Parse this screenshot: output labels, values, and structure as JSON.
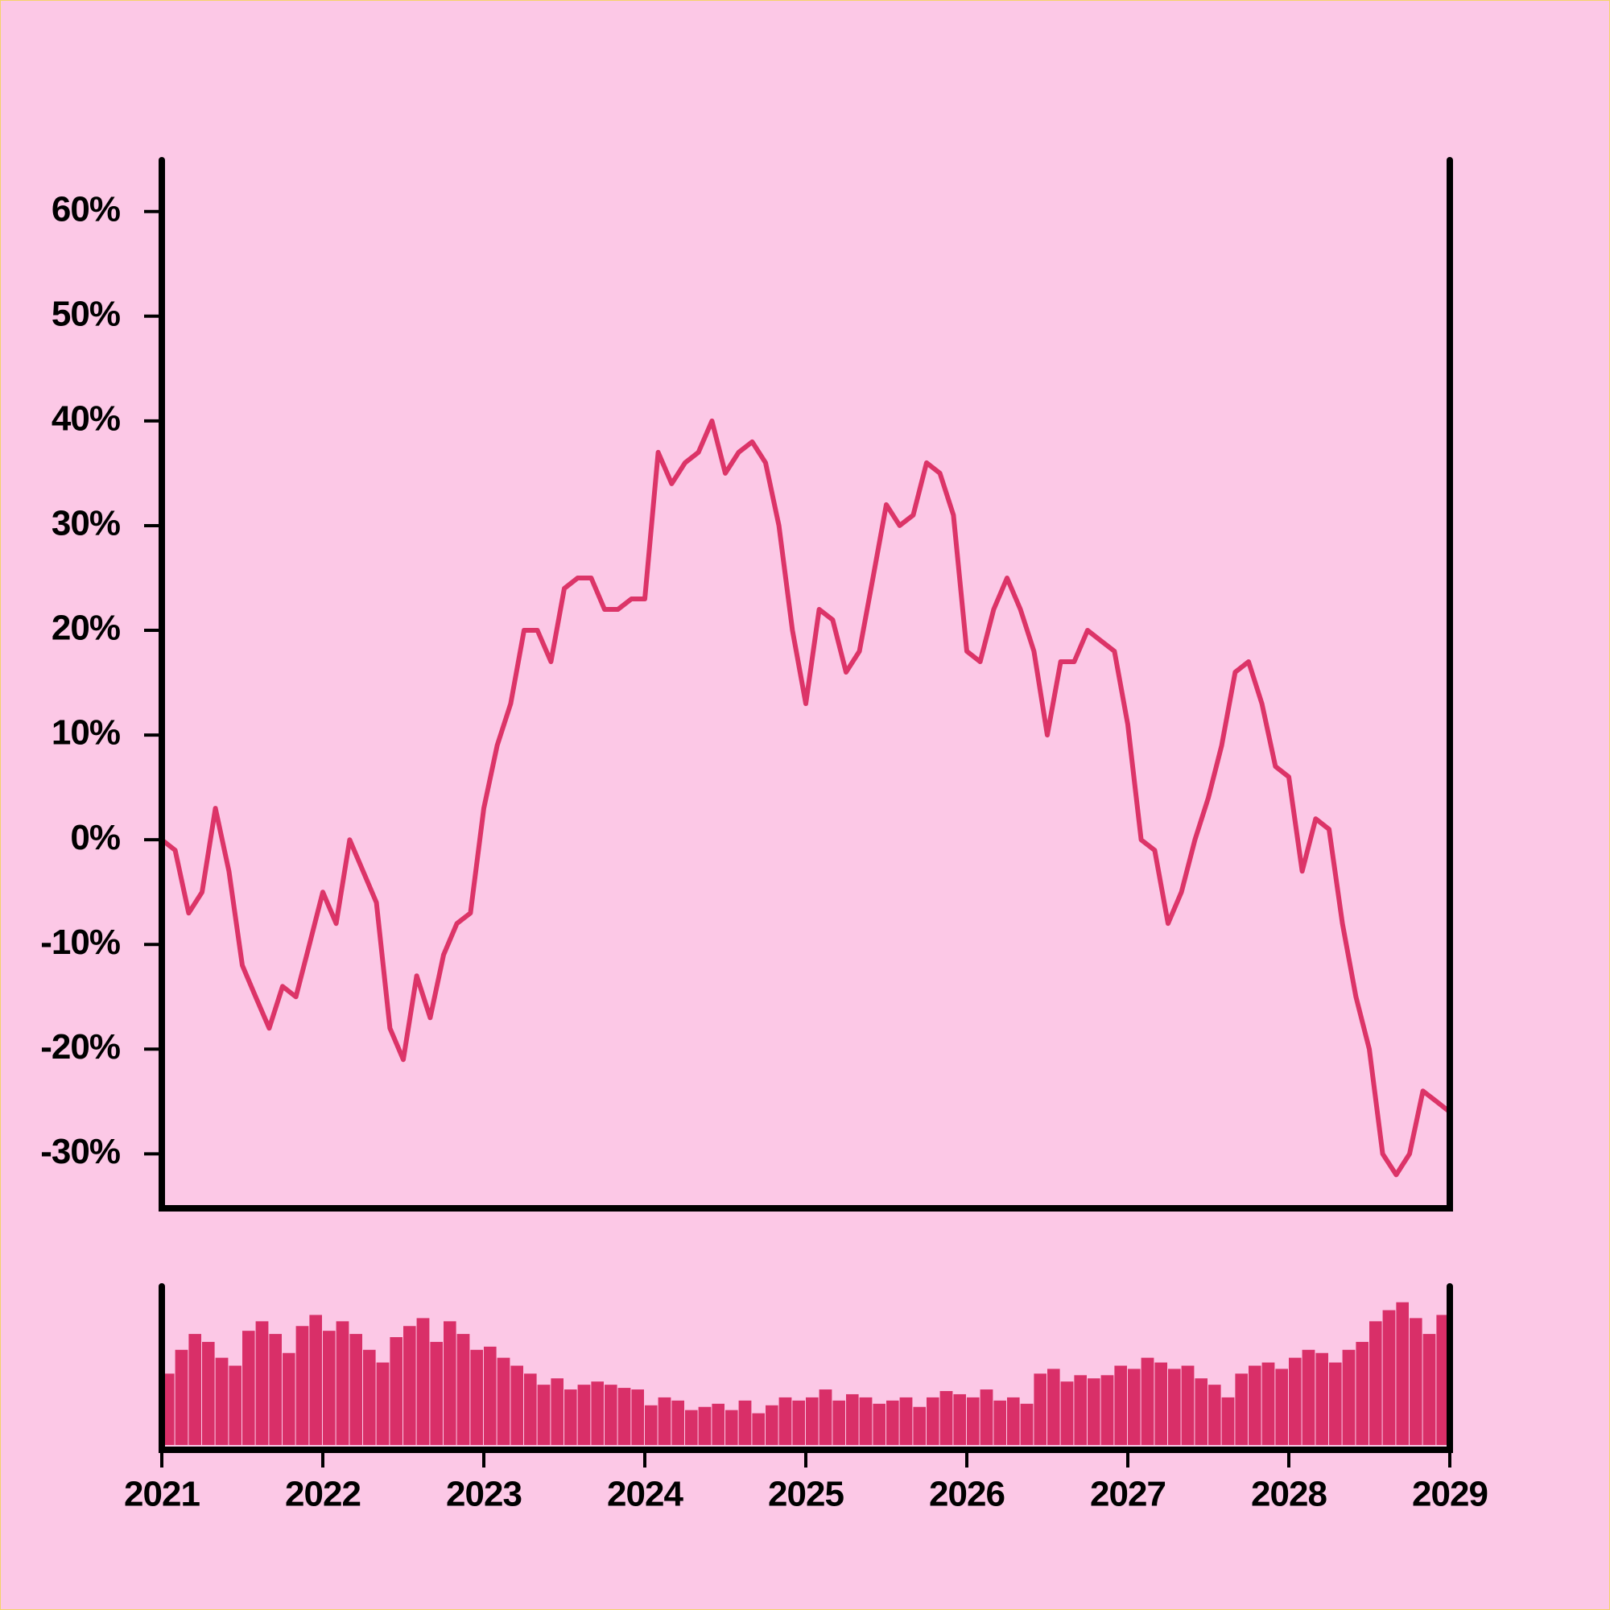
{
  "chart_data": [
    {
      "type": "line",
      "color": "#dc3468",
      "x": [
        2021,
        2021.083,
        2021.167,
        2021.25,
        2021.333,
        2021.417,
        2021.5,
        2021.583,
        2021.667,
        2021.75,
        2021.833,
        2021.917,
        2022,
        2022.083,
        2022.167,
        2022.25,
        2022.333,
        2022.417,
        2022.5,
        2022.583,
        2022.667,
        2022.75,
        2022.833,
        2022.917,
        2023,
        2023.083,
        2023.167,
        2023.25,
        2023.333,
        2023.417,
        2023.5,
        2023.583,
        2023.667,
        2023.75,
        2023.833,
        2023.917,
        2024,
        2024.083,
        2024.167,
        2024.25,
        2024.333,
        2024.417,
        2024.5,
        2024.583,
        2024.667,
        2024.75,
        2024.833,
        2024.917,
        2025,
        2025.083,
        2025.167,
        2025.25,
        2025.333,
        2025.417,
        2025.5,
        2025.583,
        2025.667,
        2025.75,
        2025.833,
        2025.917,
        2026,
        2026.083,
        2026.167,
        2026.25,
        2026.333,
        2026.417,
        2026.5,
        2026.583,
        2026.667,
        2026.75,
        2026.833,
        2026.917,
        2027,
        2027.083,
        2027.167,
        2027.25,
        2027.333,
        2027.417,
        2027.5,
        2027.583,
        2027.667,
        2027.75,
        2027.833,
        2027.917,
        2028,
        2028.083,
        2028.167,
        2028.25,
        2028.333,
        2028.417,
        2028.5,
        2028.583,
        2028.667,
        2028.75,
        2028.833,
        2028.917,
        2029
      ],
      "values": [
        0,
        -1,
        -7,
        -5,
        3,
        -3,
        -12,
        -15,
        -18,
        -14,
        -15,
        -10,
        -5,
        -8,
        0,
        -3,
        -6,
        -18,
        -21,
        -13,
        -17,
        -11,
        -8,
        -7,
        3,
        9,
        13,
        20,
        20,
        17,
        24,
        25,
        25,
        22,
        22,
        23,
        23,
        37,
        34,
        36,
        37,
        40,
        35,
        37,
        38,
        36,
        30,
        20,
        13,
        22,
        21,
        16,
        18,
        25,
        32,
        30,
        31,
        36,
        35,
        31,
        18,
        17,
        22,
        25,
        22,
        18,
        10,
        17,
        17,
        20,
        19,
        18,
        11,
        0,
        -1,
        -8,
        -5,
        0,
        4,
        9,
        16,
        17,
        13,
        7,
        6,
        -3,
        2,
        1,
        -8,
        -15,
        -20,
        -30,
        -32,
        -30,
        -24,
        -25,
        -26
      ],
      "xlim": [
        2021,
        2029
      ],
      "ylim": [
        -35.2,
        64.9
      ],
      "yticks": [
        {
          "value": -30,
          "label": "-30%"
        },
        {
          "value": -20,
          "label": "-20%"
        },
        {
          "value": -10,
          "label": "-10%"
        },
        {
          "value": 0,
          "label": "0%"
        },
        {
          "value": 10,
          "label": "10%"
        },
        {
          "value": 20,
          "label": "20%"
        },
        {
          "value": 30,
          "label": "30%"
        },
        {
          "value": 40,
          "label": "40%"
        },
        {
          "value": 50,
          "label": "50%"
        },
        {
          "value": 60,
          "label": "60%"
        }
      ]
    },
    {
      "type": "bar",
      "color": "#d92f68",
      "x": [
        2021,
        2021.083,
        2021.167,
        2021.25,
        2021.333,
        2021.417,
        2021.5,
        2021.583,
        2021.667,
        2021.75,
        2021.833,
        2021.917,
        2022,
        2022.083,
        2022.167,
        2022.25,
        2022.333,
        2022.417,
        2022.5,
        2022.583,
        2022.667,
        2022.75,
        2022.833,
        2022.917,
        2023,
        2023.083,
        2023.167,
        2023.25,
        2023.333,
        2023.417,
        2023.5,
        2023.583,
        2023.667,
        2023.75,
        2023.833,
        2023.917,
        2024,
        2024.083,
        2024.167,
        2024.25,
        2024.333,
        2024.417,
        2024.5,
        2024.583,
        2024.667,
        2024.75,
        2024.833,
        2024.917,
        2025,
        2025.083,
        2025.167,
        2025.25,
        2025.333,
        2025.417,
        2025.5,
        2025.583,
        2025.667,
        2025.75,
        2025.833,
        2025.917,
        2026,
        2026.083,
        2026.167,
        2026.25,
        2026.333,
        2026.417,
        2026.5,
        2026.583,
        2026.667,
        2026.75,
        2026.833,
        2026.917,
        2027,
        2027.083,
        2027.167,
        2027.25,
        2027.333,
        2027.417,
        2027.5,
        2027.583,
        2027.667,
        2027.75,
        2027.833,
        2027.917,
        2028,
        2028.083,
        2028.167,
        2028.25,
        2028.333,
        2028.417,
        2028.5,
        2028.583,
        2028.667,
        2028.75,
        2028.833,
        2028.917
      ],
      "values": [
        45,
        60,
        70,
        65,
        55,
        50,
        72,
        78,
        70,
        58,
        75,
        82,
        72,
        78,
        70,
        60,
        52,
        68,
        75,
        80,
        65,
        78,
        70,
        60,
        62,
        55,
        50,
        45,
        38,
        42,
        35,
        38,
        40,
        38,
        36,
        35,
        25,
        30,
        28,
        22,
        24,
        26,
        22,
        28,
        20,
        25,
        30,
        28,
        30,
        35,
        28,
        32,
        30,
        26,
        28,
        30,
        24,
        30,
        34,
        32,
        30,
        35,
        28,
        30,
        26,
        45,
        48,
        40,
        44,
        42,
        44,
        50,
        48,
        55,
        52,
        48,
        50,
        42,
        38,
        30,
        45,
        50,
        52,
        48,
        55,
        60,
        58,
        52,
        60,
        65,
        78,
        85,
        90,
        80,
        70,
        82
      ],
      "xlim": [
        2021,
        2029
      ],
      "ylim": [
        0,
        100
      ],
      "xticks": [
        2021,
        2022,
        2023,
        2024,
        2025,
        2026,
        2027,
        2028,
        2029
      ]
    }
  ]
}
